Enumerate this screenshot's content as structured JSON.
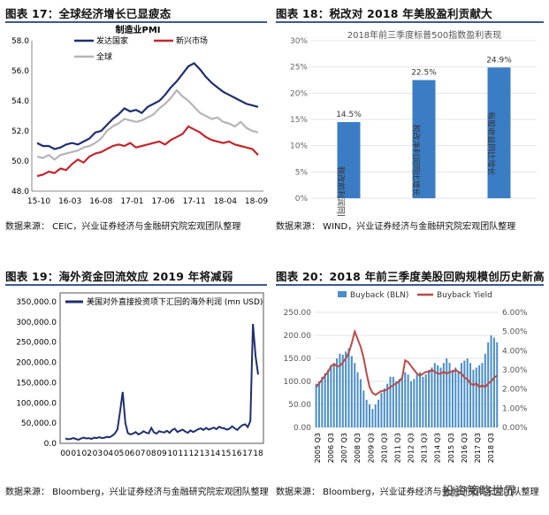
{
  "panels": [
    {
      "title": "图表 17：全球经济增长已显疲态",
      "source": "数据来源： CEIC，兴业证券经济与金融研究院宏观团队整理"
    },
    {
      "title": "图表 18：税改对 2018 年美股盈利贡献大",
      "source": "数据来源： WIND，兴业证券经济与金融研究院宏观团队整理"
    },
    {
      "title": "图表 19：海外资金回流效应 2019 年将减弱",
      "source": "数据来源： Bloomberg，兴业证券经济与金融研究院宏观团队整理"
    },
    {
      "title": "图表 20：2018 年前三季度美股回购规模创历史新高",
      "source": "数据来源： Bloomberg，兴业证券经济与金融研究院宏观团队整理"
    }
  ],
  "watermark": "投资策略世界",
  "chart_data": [
    {
      "type": "line",
      "title": "制造业PMI",
      "x_ticks": [
        "15-10",
        "16-03",
        "16-08",
        "17-01",
        "17-06",
        "17-11",
        "18-04",
        "18-09"
      ],
      "ylim": [
        48,
        58
      ],
      "y_ticks": [
        "48.0",
        "50.0",
        "52.0",
        "54.0",
        "56.0",
        "58.0"
      ],
      "legend": "top",
      "series": [
        {
          "name": "发达国家",
          "color": "#1f2f6e",
          "values": [
            51.2,
            51.0,
            51.0,
            50.8,
            50.9,
            51.1,
            51.2,
            51.1,
            51.3,
            51.5,
            51.9,
            52.0,
            52.4,
            52.8,
            53.1,
            53.5,
            53.3,
            53.4,
            53.2,
            53.6,
            53.8,
            54.0,
            54.4,
            54.9,
            55.3,
            55.8,
            56.3,
            56.5,
            56.1,
            55.6,
            55.2,
            54.9,
            54.6,
            54.4,
            54.2,
            54.0,
            53.8,
            53.7,
            53.6
          ]
        },
        {
          "name": "新兴市场",
          "color": "#c0282d",
          "values": [
            49.0,
            49.1,
            49.3,
            49.2,
            49.5,
            49.4,
            49.8,
            50.1,
            49.9,
            50.3,
            50.5,
            50.6,
            50.8,
            51.0,
            51.1,
            51.0,
            51.2,
            50.9,
            51.0,
            51.1,
            51.2,
            51.3,
            51.1,
            51.4,
            51.6,
            51.8,
            52.3,
            52.1,
            51.9,
            51.6,
            51.4,
            51.3,
            51.2,
            51.3,
            51.1,
            51.0,
            50.9,
            50.8,
            50.4
          ]
        },
        {
          "name": "全球",
          "color": "#b5b5b5",
          "values": [
            50.3,
            50.2,
            50.4,
            50.1,
            50.4,
            50.5,
            50.6,
            50.7,
            50.9,
            51.0,
            51.2,
            51.5,
            52.0,
            52.3,
            52.5,
            52.8,
            52.7,
            52.6,
            52.7,
            52.9,
            53.1,
            53.5,
            53.8,
            54.2,
            54.7,
            54.3,
            54.0,
            53.6,
            53.2,
            53.0,
            52.8,
            52.9,
            52.6,
            52.5,
            52.3,
            52.6,
            52.2,
            52.0,
            51.9
          ]
        }
      ]
    },
    {
      "type": "bar",
      "title": "2018年前三季度标普500指数盈利表现",
      "categories": [
        "税改前利润同比增长",
        "税改净利润同比增长",
        "每股收益同比增长"
      ],
      "values": [
        14.5,
        22.5,
        24.9
      ],
      "data_labels": [
        "14.5%",
        "22.5%",
        "24.9%"
      ],
      "ylim": [
        0,
        30
      ],
      "y_ticks": [
        "0%",
        "5%",
        "10%",
        "15%",
        "20%",
        "25%",
        "30%"
      ],
      "color": "#3b7dc4"
    },
    {
      "type": "line",
      "x_ticks": [
        "00",
        "01",
        "02",
        "03",
        "04",
        "05",
        "06",
        "07",
        "08",
        "09",
        "10",
        "11",
        "12",
        "13",
        "14",
        "15",
        "16",
        "17",
        "18"
      ],
      "ylim": [
        0,
        350000
      ],
      "y_ticks": [
        "0.0",
        "50,000.0",
        "100,000.0",
        "150,000.0",
        "200,000.0",
        "250,000.0",
        "300,000.0",
        "350,000.0"
      ],
      "legend": "top-left",
      "series": [
        {
          "name": "美国对外直接投资项下汇回的海外利润 (mn USD)",
          "color": "#1f2f6e",
          "values": [
            12000,
            10000,
            11000,
            13000,
            11000,
            9000,
            12000,
            14000,
            12000,
            13000,
            11000,
            14000,
            13000,
            15000,
            13000,
            14000,
            16000,
            15000,
            19000,
            24000,
            35000,
            80000,
            127000,
            50000,
            25000,
            22000,
            24000,
            28000,
            22000,
            25000,
            30000,
            26000,
            25000,
            38000,
            27000,
            24000,
            30000,
            28000,
            27000,
            31000,
            26000,
            33000,
            36000,
            28000,
            31000,
            34000,
            29000,
            26000,
            32000,
            28000,
            31000,
            35000,
            37000,
            33000,
            38000,
            34000,
            36000,
            39000,
            35000,
            41000,
            38000,
            37000,
            34000,
            36000,
            42000,
            37000,
            33000,
            40000,
            45000,
            47000,
            40000,
            55000,
            295000,
            215000,
            170000
          ]
        }
      ]
    },
    {
      "type": "bar",
      "x_ticks": [
        "2005 Q3",
        "2006 Q3",
        "2007 Q3",
        "2008 Q3",
        "2009 Q3",
        "2010 Q3",
        "2011 Q3",
        "2012 Q3",
        "2013 Q3",
        "2014 Q3",
        "2015 Q3",
        "2016 Q3",
        "2017 Q3",
        "2018 Q3"
      ],
      "ylim": [
        0,
        250
      ],
      "y_ticks": [
        "0.00",
        "50.00",
        "100.00",
        "150.00",
        "200.00",
        "250.00"
      ],
      "y2lim": [
        0,
        6
      ],
      "y2_ticks": [
        "0.00%",
        "1.00%",
        "2.00%",
        "3.00%",
        "4.00%",
        "5.00%",
        "6.00%"
      ],
      "legend": "top",
      "series": [
        {
          "name": "Buyback (BLN)",
          "color": "#4a8ec8",
          "type": "bar",
          "values": [
            95,
            100,
            110,
            118,
            125,
            135,
            140,
            150,
            160,
            158,
            165,
            172,
            155,
            140,
            120,
            105,
            80,
            60,
            50,
            40,
            50,
            60,
            75,
            85,
            95,
            110,
            110,
            100,
            105,
            110,
            120,
            115,
            100,
            105,
            115,
            120,
            110,
            115,
            125,
            130,
            140,
            135,
            130,
            140,
            150,
            140,
            125,
            130,
            120,
            140,
            145,
            150,
            140,
            125,
            130,
            135,
            140,
            160,
            185,
            200,
            195,
            185
          ]
        },
        {
          "name": "Buyback Yield",
          "color": "#b94a48",
          "type": "line",
          "axis": "right",
          "values": [
            2.1,
            2.3,
            2.5,
            2.7,
            2.9,
            3.2,
            3.3,
            3.2,
            3.2,
            3.4,
            3.6,
            3.9,
            4.4,
            5.0,
            4.6,
            4.2,
            3.6,
            2.8,
            2.1,
            1.8,
            1.7,
            1.8,
            1.9,
            1.9,
            2.0,
            2.1,
            2.2,
            2.3,
            2.4,
            2.6,
            3.5,
            3.4,
            3.2,
            3.0,
            2.8,
            2.7,
            2.8,
            2.9,
            2.9,
            3.0,
            2.9,
            2.8,
            2.8,
            2.9,
            2.8,
            2.9,
            2.9,
            3.0,
            2.9,
            2.8,
            2.6,
            2.5,
            2.3,
            2.2,
            2.3,
            2.1,
            2.2,
            2.1,
            2.3,
            2.4,
            2.6,
            2.7
          ]
        }
      ]
    }
  ]
}
